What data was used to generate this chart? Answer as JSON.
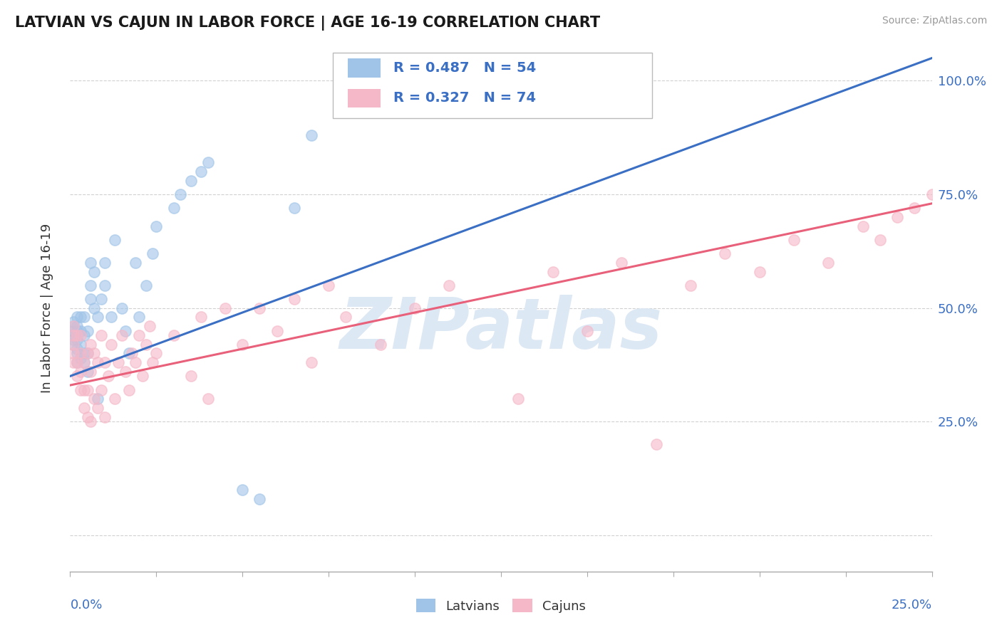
{
  "title": "LATVIAN VS CAJUN IN LABOR FORCE | AGE 16-19 CORRELATION CHART",
  "source": "Source: ZipAtlas.com",
  "ylabel": "In Labor Force | Age 16-19",
  "yaxis_ticks": [
    0.0,
    0.25,
    0.5,
    0.75,
    1.0
  ],
  "yaxis_labels": [
    "",
    "25.0%",
    "50.0%",
    "75.0%",
    "100.0%"
  ],
  "xmin": 0.0,
  "xmax": 0.25,
  "ymin": -0.08,
  "ymax": 1.08,
  "latvian_R": 0.487,
  "latvian_N": 54,
  "cajun_R": 0.327,
  "cajun_N": 74,
  "latvian_color": "#a0c4e8",
  "cajun_color": "#f5b8c8",
  "latvian_line_color": "#3a6fc4",
  "cajun_line_color": "#e8607a",
  "watermark": "ZIPatlas",
  "watermark_color": "#dde8f5",
  "background_color": "#ffffff",
  "grid_color": "#cccccc",
  "legend_color": "#3a6fc4",
  "latvian_line_slope": 2.8,
  "latvian_line_intercept": 0.35,
  "cajun_line_slope": 1.6,
  "cajun_line_intercept": 0.33,
  "latvians_x": [
    0.001,
    0.001,
    0.001,
    0.001,
    0.001,
    0.001,
    0.002,
    0.002,
    0.002,
    0.002,
    0.002,
    0.002,
    0.002,
    0.002,
    0.003,
    0.003,
    0.003,
    0.003,
    0.004,
    0.004,
    0.004,
    0.004,
    0.005,
    0.005,
    0.005,
    0.006,
    0.006,
    0.006,
    0.007,
    0.007,
    0.008,
    0.008,
    0.009,
    0.01,
    0.01,
    0.012,
    0.013,
    0.015,
    0.016,
    0.017,
    0.019,
    0.02,
    0.022,
    0.024,
    0.025,
    0.03,
    0.032,
    0.035,
    0.038,
    0.04,
    0.05,
    0.055,
    0.065,
    0.07
  ],
  "latvians_y": [
    0.42,
    0.43,
    0.44,
    0.45,
    0.46,
    0.47,
    0.38,
    0.4,
    0.41,
    0.43,
    0.44,
    0.45,
    0.46,
    0.48,
    0.39,
    0.42,
    0.45,
    0.48,
    0.38,
    0.4,
    0.44,
    0.48,
    0.36,
    0.4,
    0.45,
    0.52,
    0.55,
    0.6,
    0.5,
    0.58,
    0.3,
    0.48,
    0.52,
    0.55,
    0.6,
    0.48,
    0.65,
    0.5,
    0.45,
    0.4,
    0.6,
    0.48,
    0.55,
    0.62,
    0.68,
    0.72,
    0.75,
    0.78,
    0.8,
    0.82,
    0.1,
    0.08,
    0.72,
    0.88
  ],
  "cajuns_x": [
    0.001,
    0.001,
    0.001,
    0.001,
    0.001,
    0.002,
    0.002,
    0.002,
    0.003,
    0.003,
    0.003,
    0.003,
    0.004,
    0.004,
    0.004,
    0.005,
    0.005,
    0.005,
    0.006,
    0.006,
    0.006,
    0.007,
    0.007,
    0.008,
    0.008,
    0.009,
    0.009,
    0.01,
    0.01,
    0.011,
    0.012,
    0.013,
    0.014,
    0.015,
    0.016,
    0.017,
    0.018,
    0.019,
    0.02,
    0.021,
    0.022,
    0.023,
    0.024,
    0.025,
    0.03,
    0.035,
    0.038,
    0.04,
    0.045,
    0.05,
    0.055,
    0.06,
    0.065,
    0.07,
    0.075,
    0.08,
    0.09,
    0.1,
    0.11,
    0.13,
    0.14,
    0.15,
    0.16,
    0.18,
    0.19,
    0.2,
    0.21,
    0.22,
    0.23,
    0.235,
    0.24,
    0.245,
    0.25,
    0.17
  ],
  "cajuns_y": [
    0.38,
    0.4,
    0.42,
    0.44,
    0.46,
    0.35,
    0.38,
    0.44,
    0.32,
    0.36,
    0.4,
    0.44,
    0.28,
    0.32,
    0.38,
    0.26,
    0.32,
    0.4,
    0.25,
    0.36,
    0.42,
    0.3,
    0.4,
    0.28,
    0.38,
    0.32,
    0.44,
    0.26,
    0.38,
    0.35,
    0.42,
    0.3,
    0.38,
    0.44,
    0.36,
    0.32,
    0.4,
    0.38,
    0.44,
    0.35,
    0.42,
    0.46,
    0.38,
    0.4,
    0.44,
    0.35,
    0.48,
    0.3,
    0.5,
    0.42,
    0.5,
    0.45,
    0.52,
    0.38,
    0.55,
    0.48,
    0.42,
    0.5,
    0.55,
    0.3,
    0.58,
    0.45,
    0.6,
    0.55,
    0.62,
    0.58,
    0.65,
    0.6,
    0.68,
    0.65,
    0.7,
    0.72,
    0.75,
    0.2
  ]
}
